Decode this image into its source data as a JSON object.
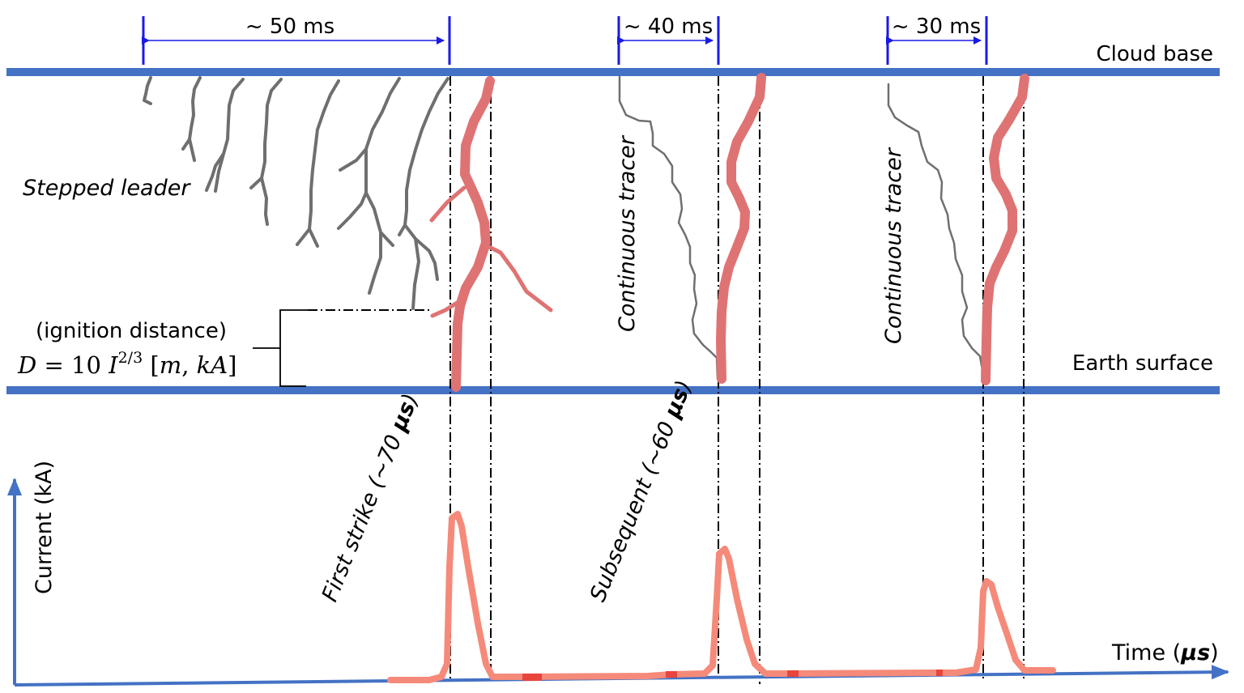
{
  "diagram": {
    "labels": {
      "cloud_base": "Cloud base",
      "earth_surface": "Earth surface",
      "stepped_leader": "Stepped leader",
      "continuous_tracer_1": "Continuous tracer",
      "continuous_tracer_2": "Continuous tracer",
      "ignition_distance": "(ignition distance)",
      "formula_D": "D",
      "formula_eq": " = 10 ",
      "formula_I": "I",
      "formula_exp": "2/3",
      "formula_unit_open": " [",
      "formula_unit_m": "m",
      "formula_unit_comma": ", ",
      "formula_unit_kA": "kA",
      "formula_unit_close": "]",
      "first_strike": "First strike (~70 ",
      "subsequent": "Subsequent (~60 ",
      "mu_s": "μs",
      "paren_close": ")",
      "current_axis": "Current (kA)",
      "time_axis": "Time (",
      "time_unit": "μs",
      "time_close": ")"
    },
    "intervals": [
      {
        "label": "~ 50 ms"
      },
      {
        "label": "~ 40 ms"
      },
      {
        "label": "~ 30 ms"
      }
    ],
    "colors": {
      "boundary": "#4472c4",
      "interval_arrow": "#1a1ae6",
      "leader": "#6f6f6f",
      "return_stroke": "#df7373",
      "current_pulse": "#f58a7a",
      "axis": "#4472c4"
    },
    "current_pulses": [
      {
        "name": "first strike",
        "relative_peak": 1.0
      },
      {
        "name": "subsequent 1",
        "relative_peak": 0.75
      },
      {
        "name": "subsequent 2",
        "relative_peak": 0.55
      }
    ]
  }
}
